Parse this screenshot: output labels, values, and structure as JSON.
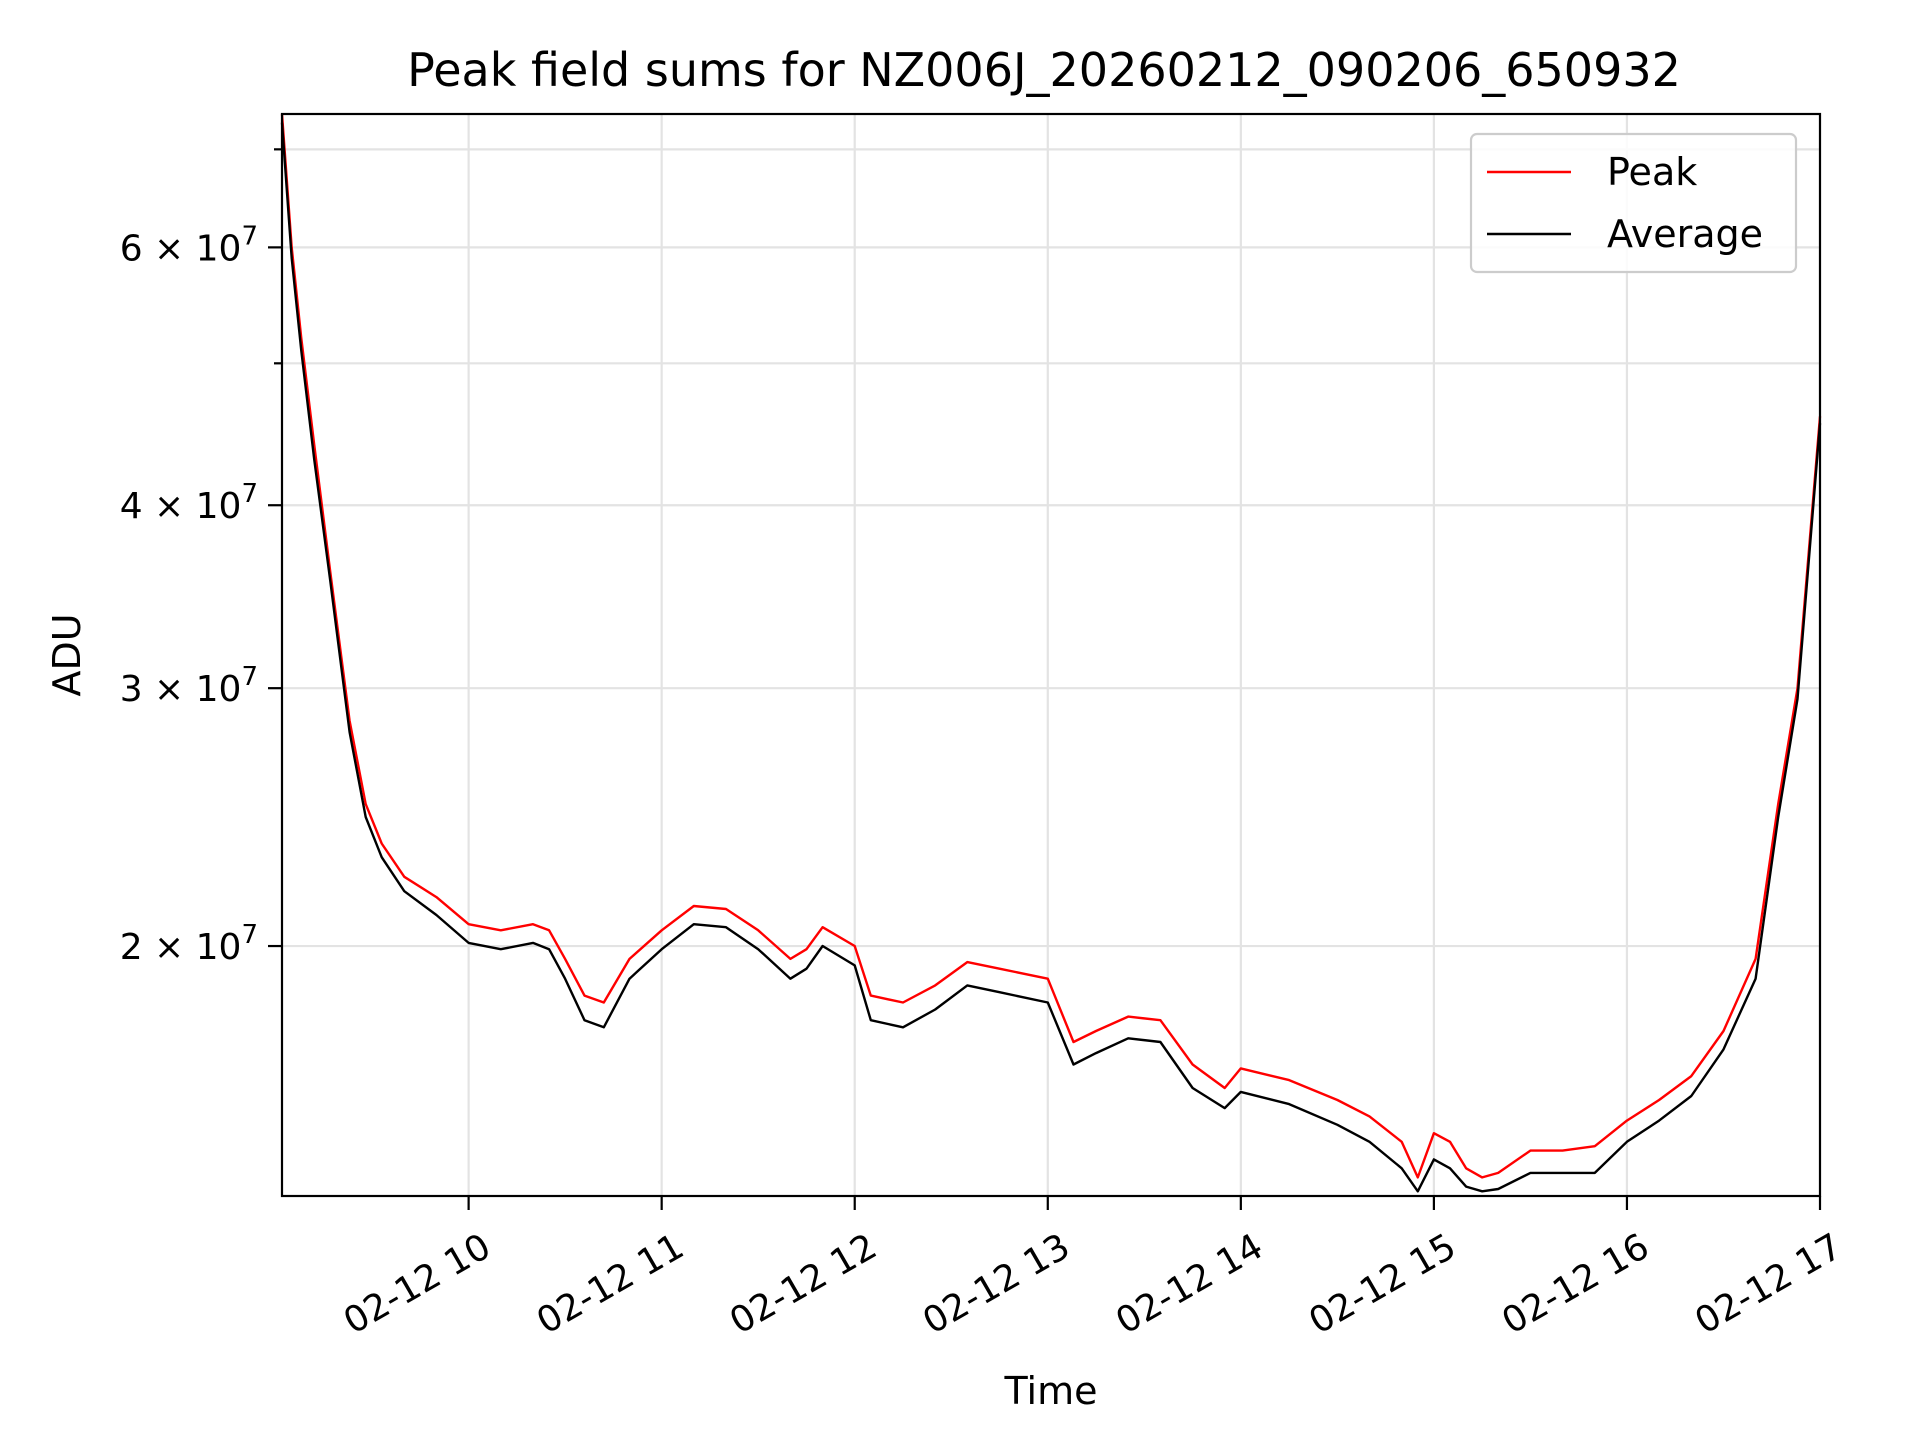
{
  "chart_data": {
    "type": "line",
    "title": "Peak field sums for NZ006J_20260212_090206_650932",
    "xlabel": "Time",
    "ylabel": "ADU",
    "x_axis": {
      "type": "time",
      "range": [
        "2026-02-12 09:02",
        "2026-02-12 17:00"
      ],
      "ticks": [
        {
          "value": "2026-02-12 10:00",
          "label": "02-12 10"
        },
        {
          "value": "2026-02-12 11:00",
          "label": "02-12 11"
        },
        {
          "value": "2026-02-12 12:00",
          "label": "02-12 12"
        },
        {
          "value": "2026-02-12 13:00",
          "label": "02-12 13"
        },
        {
          "value": "2026-02-12 14:00",
          "label": "02-12 14"
        },
        {
          "value": "2026-02-12 15:00",
          "label": "02-12 15"
        },
        {
          "value": "2026-02-12 16:00",
          "label": "02-12 16"
        },
        {
          "value": "2026-02-12 17:00",
          "label": "02-12 17"
        }
      ]
    },
    "y_axis": {
      "scale": "log",
      "range": [
        13500000,
        74000000
      ],
      "major_ticks": [
        {
          "value": 20000000,
          "label_mantissa": "2",
          "label_exponent": "7"
        },
        {
          "value": 30000000,
          "label_mantissa": "3",
          "label_exponent": "7"
        },
        {
          "value": 40000000,
          "label_mantissa": "4",
          "label_exponent": "7"
        },
        {
          "value": 60000000,
          "label_mantissa": "6",
          "label_exponent": "7"
        }
      ],
      "minor_ticks_unlabeled": [
        50000000,
        70000000
      ]
    },
    "grid": true,
    "legend": {
      "position": "top-right",
      "entries": [
        {
          "name": "Peak",
          "color": "#ff0000"
        },
        {
          "name": "Average",
          "color": "#000000"
        }
      ]
    },
    "series": [
      {
        "name": "Peak",
        "color": "#ff0000",
        "points": [
          [
            "2026-02-12 09:02",
            74000000
          ],
          [
            "2026-02-12 09:05",
            60000000
          ],
          [
            "2026-02-12 09:08",
            52000000
          ],
          [
            "2026-02-12 09:12",
            44000000
          ],
          [
            "2026-02-12 09:17",
            36000000
          ],
          [
            "2026-02-12 09:23",
            28500000
          ],
          [
            "2026-02-12 09:28",
            25000000
          ],
          [
            "2026-02-12 09:33",
            23500000
          ],
          [
            "2026-02-12 09:40",
            22300000
          ],
          [
            "2026-02-12 09:50",
            21600000
          ],
          [
            "2026-02-12 10:00",
            20700000
          ],
          [
            "2026-02-12 10:10",
            20500000
          ],
          [
            "2026-02-12 10:20",
            20700000
          ],
          [
            "2026-02-12 10:25",
            20500000
          ],
          [
            "2026-02-12 10:30",
            19600000
          ],
          [
            "2026-02-12 10:36",
            18500000
          ],
          [
            "2026-02-12 10:42",
            18300000
          ],
          [
            "2026-02-12 10:50",
            19600000
          ],
          [
            "2026-02-12 11:00",
            20500000
          ],
          [
            "2026-02-12 11:10",
            21300000
          ],
          [
            "2026-02-12 11:20",
            21200000
          ],
          [
            "2026-02-12 11:30",
            20500000
          ],
          [
            "2026-02-12 11:40",
            19600000
          ],
          [
            "2026-02-12 11:45",
            19900000
          ],
          [
            "2026-02-12 11:50",
            20600000
          ],
          [
            "2026-02-12 12:00",
            20000000
          ],
          [
            "2026-02-12 12:05",
            18500000
          ],
          [
            "2026-02-12 12:15",
            18300000
          ],
          [
            "2026-02-12 12:25",
            18800000
          ],
          [
            "2026-02-12 12:35",
            19500000
          ],
          [
            "2026-02-12 12:45",
            19300000
          ],
          [
            "2026-02-12 13:00",
            19000000
          ],
          [
            "2026-02-12 13:08",
            17200000
          ],
          [
            "2026-02-12 13:15",
            17500000
          ],
          [
            "2026-02-12 13:25",
            17900000
          ],
          [
            "2026-02-12 13:35",
            17800000
          ],
          [
            "2026-02-12 13:45",
            16600000
          ],
          [
            "2026-02-12 13:55",
            16000000
          ],
          [
            "2026-02-12 14:00",
            16500000
          ],
          [
            "2026-02-12 14:15",
            16200000
          ],
          [
            "2026-02-12 14:30",
            15700000
          ],
          [
            "2026-02-12 14:40",
            15300000
          ],
          [
            "2026-02-12 14:50",
            14700000
          ],
          [
            "2026-02-12 14:55",
            13900000
          ],
          [
            "2026-02-12 15:00",
            14900000
          ],
          [
            "2026-02-12 15:05",
            14700000
          ],
          [
            "2026-02-12 15:10",
            14100000
          ],
          [
            "2026-02-12 15:15",
            13900000
          ],
          [
            "2026-02-12 15:20",
            14000000
          ],
          [
            "2026-02-12 15:30",
            14500000
          ],
          [
            "2026-02-12 15:40",
            14500000
          ],
          [
            "2026-02-12 15:50",
            14600000
          ],
          [
            "2026-02-12 16:00",
            15200000
          ],
          [
            "2026-02-12 16:10",
            15700000
          ],
          [
            "2026-02-12 16:20",
            16300000
          ],
          [
            "2026-02-12 16:30",
            17500000
          ],
          [
            "2026-02-12 16:40",
            19600000
          ],
          [
            "2026-02-12 16:47",
            25000000
          ],
          [
            "2026-02-12 16:53",
            30000000
          ],
          [
            "2026-02-12 17:00",
            46000000
          ]
        ]
      },
      {
        "name": "Average",
        "color": "#000000",
        "points": [
          [
            "2026-02-12 09:02",
            73000000
          ],
          [
            "2026-02-12 09:05",
            59000000
          ],
          [
            "2026-02-12 09:08",
            51000000
          ],
          [
            "2026-02-12 09:12",
            43000000
          ],
          [
            "2026-02-12 09:17",
            35500000
          ],
          [
            "2026-02-12 09:23",
            28000000
          ],
          [
            "2026-02-12 09:28",
            24500000
          ],
          [
            "2026-02-12 09:33",
            23000000
          ],
          [
            "2026-02-12 09:40",
            21800000
          ],
          [
            "2026-02-12 09:50",
            21000000
          ],
          [
            "2026-02-12 10:00",
            20100000
          ],
          [
            "2026-02-12 10:10",
            19900000
          ],
          [
            "2026-02-12 10:20",
            20100000
          ],
          [
            "2026-02-12 10:25",
            19900000
          ],
          [
            "2026-02-12 10:30",
            19000000
          ],
          [
            "2026-02-12 10:36",
            17800000
          ],
          [
            "2026-02-12 10:42",
            17600000
          ],
          [
            "2026-02-12 10:50",
            19000000
          ],
          [
            "2026-02-12 11:00",
            19900000
          ],
          [
            "2026-02-12 11:10",
            20700000
          ],
          [
            "2026-02-12 11:20",
            20600000
          ],
          [
            "2026-02-12 11:30",
            19900000
          ],
          [
            "2026-02-12 11:40",
            19000000
          ],
          [
            "2026-02-12 11:45",
            19300000
          ],
          [
            "2026-02-12 11:50",
            20000000
          ],
          [
            "2026-02-12 12:00",
            19400000
          ],
          [
            "2026-02-12 12:05",
            17800000
          ],
          [
            "2026-02-12 12:15",
            17600000
          ],
          [
            "2026-02-12 12:25",
            18100000
          ],
          [
            "2026-02-12 12:35",
            18800000
          ],
          [
            "2026-02-12 12:45",
            18600000
          ],
          [
            "2026-02-12 13:00",
            18300000
          ],
          [
            "2026-02-12 13:08",
            16600000
          ],
          [
            "2026-02-12 13:15",
            16900000
          ],
          [
            "2026-02-12 13:25",
            17300000
          ],
          [
            "2026-02-12 13:35",
            17200000
          ],
          [
            "2026-02-12 13:45",
            16000000
          ],
          [
            "2026-02-12 13:55",
            15500000
          ],
          [
            "2026-02-12 14:00",
            15900000
          ],
          [
            "2026-02-12 14:15",
            15600000
          ],
          [
            "2026-02-12 14:30",
            15100000
          ],
          [
            "2026-02-12 14:40",
            14700000
          ],
          [
            "2026-02-12 14:50",
            14100000
          ],
          [
            "2026-02-12 14:55",
            13600000
          ],
          [
            "2026-02-12 15:00",
            14300000
          ],
          [
            "2026-02-12 15:05",
            14100000
          ],
          [
            "2026-02-12 15:10",
            13700000
          ],
          [
            "2026-02-12 15:15",
            13600000
          ],
          [
            "2026-02-12 15:20",
            13650000
          ],
          [
            "2026-02-12 15:30",
            14000000
          ],
          [
            "2026-02-12 15:40",
            14000000
          ],
          [
            "2026-02-12 15:50",
            14000000
          ],
          [
            "2026-02-12 16:00",
            14700000
          ],
          [
            "2026-02-12 16:10",
            15200000
          ],
          [
            "2026-02-12 16:20",
            15800000
          ],
          [
            "2026-02-12 16:30",
            17000000
          ],
          [
            "2026-02-12 16:40",
            19000000
          ],
          [
            "2026-02-12 16:47",
            24500000
          ],
          [
            "2026-02-12 16:53",
            29500000
          ],
          [
            "2026-02-12 17:00",
            45500000
          ]
        ]
      }
    ]
  }
}
